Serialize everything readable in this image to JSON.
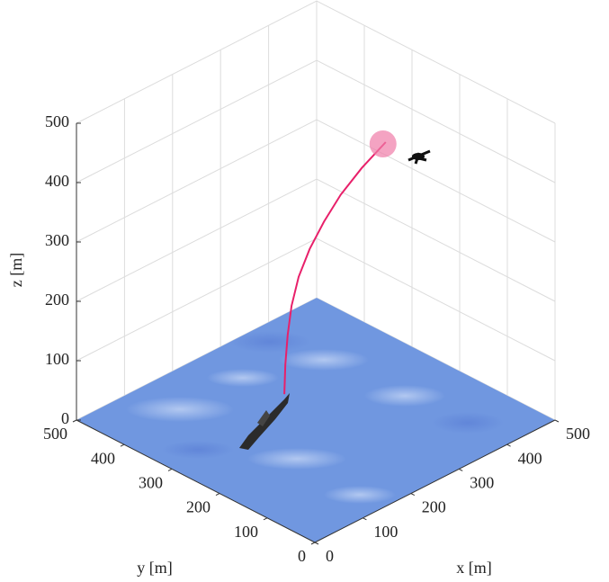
{
  "chart_data": {
    "type": "line3d",
    "xlabel": "x [m]",
    "ylabel": "y [m]",
    "zlabel": "z [m]",
    "xlim": [
      0,
      500
    ],
    "ylim": [
      0,
      500
    ],
    "zlim": [
      0,
      500
    ],
    "xticks": [
      0,
      100,
      200,
      300,
      400,
      500
    ],
    "yticks": [
      0,
      100,
      200,
      300,
      400,
      500
    ],
    "zticks": [
      0,
      100,
      200,
      300,
      400,
      500
    ],
    "grid": true,
    "series": [
      {
        "color": "#e8206a",
        "x": [
          270,
          271,
          273,
          276,
          282,
          290,
          300,
          312,
          328,
          345
        ],
        "y": [
          336,
          335,
          332,
          327,
          318,
          303,
          283,
          260,
          232,
          199
        ],
        "z": [
          0,
          50,
          100,
          150,
          200,
          250,
          300,
          350,
          400,
          450
        ]
      }
    ]
  }
}
